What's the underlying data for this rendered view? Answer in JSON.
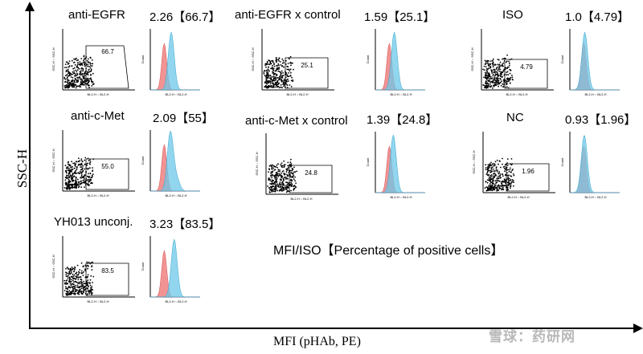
{
  "axes": {
    "y_label": "SSC-H",
    "x_label": "MFI (pHAb, PE)",
    "legend": "MFI/ISO【Percentage of positive cells】"
  },
  "watermark": "雪球：药研网",
  "plot_text": {
    "scatter_y_axis": "SSC-H :: SSC-H",
    "scatter_x_axis": "BL2-H :: BL2-H",
    "hist_y_axis": "Count",
    "hist_x_axis": "BL2-H :: BL2-H"
  },
  "chart_data": {
    "type": "flow-cytometry-panels",
    "panels": [
      {
        "id": "egfr",
        "name": "anti-EGFR",
        "mfi_iso": "2.26",
        "pct_label": "【66.7】",
        "gate_value": "66.7",
        "hist_shift": 0.12,
        "hist_second_peak": 0.0
      },
      {
        "id": "cmet",
        "name": "anti-c-Met",
        "mfi_iso": "2.09",
        "pct_label": "【55】",
        "gate_value": "55.0",
        "hist_shift": 0.1,
        "hist_second_peak": 0.22
      },
      {
        "id": "yh013",
        "name": "YH013 unconj.",
        "mfi_iso": "3.23",
        "pct_label": "【83.5】",
        "gate_value": "83.5",
        "hist_shift": 0.18,
        "hist_second_peak": 0.0
      },
      {
        "id": "egfrctl",
        "name": "anti-EGFR x control",
        "mfi_iso": "1.59",
        "pct_label": "【25.1】",
        "gate_value": "25.1",
        "hist_shift": 0.08,
        "hist_second_peak": 0.0
      },
      {
        "id": "cmetctl",
        "name": "anti-c-Met x control",
        "mfi_iso": "1.39",
        "pct_label": "【24.8】",
        "gate_value": "24.8",
        "hist_shift": 0.06,
        "hist_second_peak": 0.0
      },
      {
        "id": "iso",
        "name": "ISO",
        "mfi_iso": "1.0",
        "pct_label": "【4.79】",
        "gate_value": "4.79",
        "hist_shift": 0.0,
        "hist_second_peak": 0.0
      },
      {
        "id": "nc",
        "name": "NC",
        "mfi_iso": "0.93",
        "pct_label": "【1.96】",
        "gate_value": "1.96",
        "hist_shift": -0.01,
        "hist_second_peak": 0.0
      }
    ]
  }
}
